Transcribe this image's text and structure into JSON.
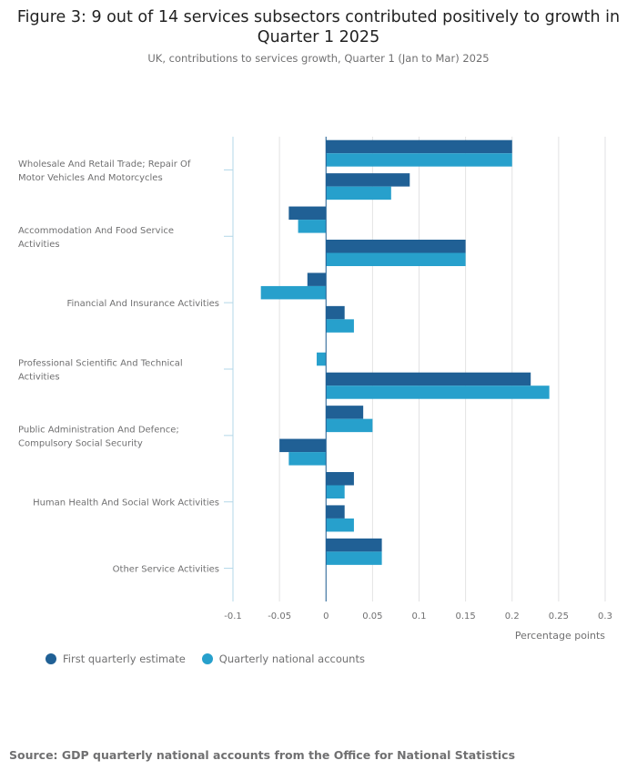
{
  "title": "Figure 3: 9 out of 14 services subsectors contributed positively to growth in Quarter 1 2025",
  "subtitle": "UK, contributions to services growth, Quarter 1 (Jan to Mar) 2025",
  "source": "Source: GDP quarterly national accounts from the Office for National Statistics",
  "colors": {
    "first": "#206095",
    "qna": "#27a0cc",
    "grid": "#e2e2e3",
    "axis": "#b3d7e8"
  },
  "chart_data": {
    "type": "bar",
    "orientation": "horizontal",
    "xlabel": "Percentage points",
    "xlim": [
      -0.1,
      0.3
    ],
    "xticks": [
      -0.1,
      -0.05,
      0,
      0.05,
      0.1,
      0.15,
      0.2,
      0.25,
      0.3
    ],
    "xtick_labels": [
      "-0.1",
      "-0.05",
      "0",
      "0.05",
      "0.1",
      "0.15",
      "0.2",
      "0.25",
      "0.3"
    ],
    "grid": true,
    "legend_position": "bottom-left",
    "category_labels": [
      {
        "index": 0,
        "lines": [
          "Wholesale And Retail Trade; Repair Of",
          "Motor Vehicles And Motorcycles"
        ]
      },
      {
        "index": 2,
        "lines": [
          "Accommodation And Food Service",
          "Activities"
        ]
      },
      {
        "index": 4,
        "lines": [
          "Financial And Insurance Activities"
        ]
      },
      {
        "index": 6,
        "lines": [
          "Professional Scientific And Technical",
          "Activities"
        ]
      },
      {
        "index": 8,
        "lines": [
          "Public Administration And Defence;",
          "Compulsory Social Security"
        ]
      },
      {
        "index": 10,
        "lines": [
          "Human Health And Social Work Activities"
        ]
      },
      {
        "index": 12,
        "lines": [
          "Other Service Activities"
        ]
      }
    ],
    "category_count": 14,
    "series": [
      {
        "name": "First quarterly estimate",
        "values": [
          0.2,
          0.09,
          -0.04,
          0.15,
          -0.02,
          0.02,
          0.0,
          0.22,
          0.04,
          -0.05,
          0.03,
          0.02,
          0.06,
          0.0
        ]
      },
      {
        "name": "Quarterly national accounts",
        "values": [
          0.2,
          0.07,
          -0.03,
          0.15,
          -0.07,
          0.03,
          -0.01,
          0.24,
          0.05,
          -0.04,
          0.02,
          0.03,
          0.06,
          0.0
        ]
      }
    ]
  }
}
